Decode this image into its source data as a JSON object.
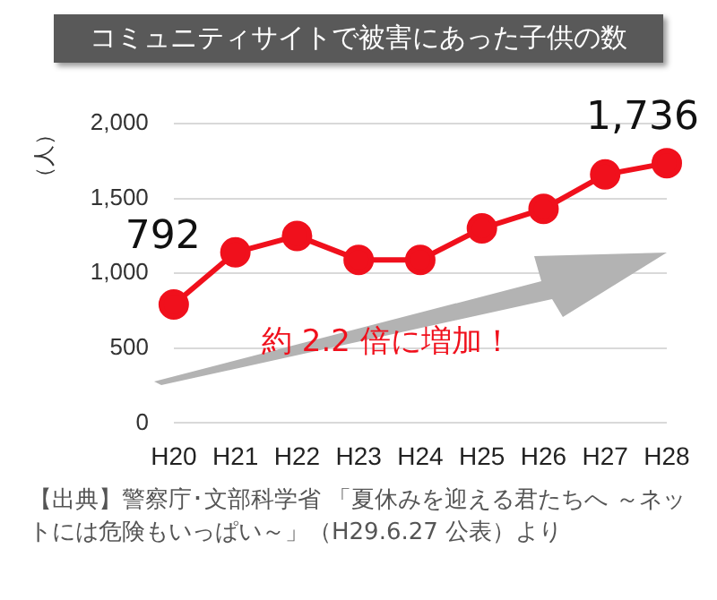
{
  "chart_data": {
    "type": "line",
    "title": "コミュニティサイトで被害にあった子供の数",
    "ylabel": "（人）",
    "categories": [
      "H20",
      "H21",
      "H22",
      "H23",
      "H24",
      "H25",
      "H26",
      "H27",
      "H28"
    ],
    "values": [
      792,
      1140,
      1250,
      1090,
      1090,
      1300,
      1430,
      1660,
      1736
    ],
    "value_labels": [
      "792",
      null,
      null,
      null,
      null,
      null,
      null,
      null,
      "1,736"
    ],
    "color": "#f0101c",
    "marker": "circle",
    "line_style": "solid",
    "ylim": [
      0,
      2000
    ],
    "yticks": [
      0,
      500,
      {
        "value": 1000,
        "label": "1,000"
      },
      {
        "value": 1500,
        "label": "1,500"
      },
      {
        "value": 2000,
        "label": "2,000"
      }
    ],
    "grid": "y",
    "legend": false,
    "annotations": [
      "約 2.2 倍に増加！",
      "【出典】警察庁･文部科学省 「夏休みを迎える君たちへ ～ネットには危険もいっぱい～」（H29.6.27 公表）より"
    ]
  }
}
